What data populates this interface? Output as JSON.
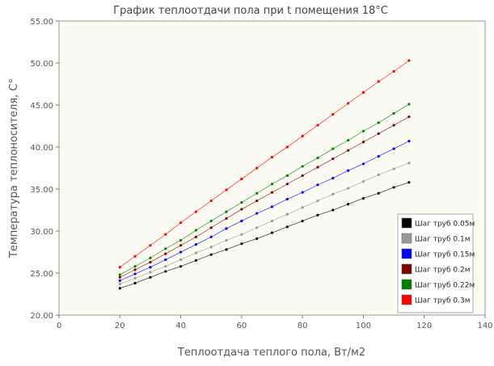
{
  "chart_data": {
    "type": "line",
    "title": "График теплоотдачи пола при t помещения 18°C",
    "xlabel": "Теплоотдача теплого пола, Вт/м2",
    "ylabel": "Температура теплоносителя, С°",
    "xlim": [
      0,
      140
    ],
    "ylim": [
      20,
      55
    ],
    "xticks": [
      "0",
      "20",
      "40",
      "60",
      "80",
      "100",
      "120",
      "140"
    ],
    "yticks": [
      "20.00",
      "25.00",
      "30.00",
      "35.00",
      "40.00",
      "45.00",
      "50.00",
      "55.00"
    ],
    "grid": false,
    "legend_position": "bottom-right",
    "plot_background": "#fcfbf3",
    "series": [
      {
        "name": "Шаг труб 0.05м",
        "color": "#000000",
        "x": [
          20,
          25,
          30,
          35,
          40,
          45,
          50,
          55,
          60,
          65,
          70,
          75,
          80,
          85,
          90,
          95,
          100,
          105,
          110,
          115
        ],
        "values": [
          23.2,
          23.8,
          24.5,
          25.2,
          25.8,
          26.5,
          27.2,
          27.8,
          28.5,
          29.1,
          29.8,
          30.5,
          31.2,
          31.9,
          32.5,
          33.2,
          33.9,
          34.5,
          35.2,
          35.8
        ]
      },
      {
        "name": "Шаг труб 0.1м",
        "color": "#999999",
        "x": [
          20,
          25,
          30,
          35,
          40,
          45,
          50,
          55,
          60,
          65,
          70,
          75,
          80,
          85,
          90,
          95,
          100,
          105,
          110,
          115
        ],
        "values": [
          23.7,
          24.4,
          25.1,
          25.8,
          26.6,
          27.4,
          28.1,
          28.9,
          29.6,
          30.4,
          31.2,
          32.0,
          32.8,
          33.6,
          34.4,
          35.1,
          35.9,
          36.7,
          37.4,
          38.1
        ]
      },
      {
        "name": "Шаг труб 0.15м",
        "color": "#0000ff",
        "x": [
          20,
          25,
          30,
          35,
          40,
          45,
          50,
          55,
          60,
          65,
          70,
          75,
          80,
          85,
          90,
          95,
          100,
          105,
          110,
          115
        ],
        "values": [
          24.1,
          24.9,
          25.7,
          26.6,
          27.5,
          28.4,
          29.3,
          30.3,
          31.2,
          32.1,
          32.9,
          33.8,
          34.6,
          35.5,
          36.3,
          37.2,
          38.0,
          38.9,
          39.8,
          40.7
        ]
      },
      {
        "name": "Шаг труб 0.2м",
        "color": "#800000",
        "x": [
          20,
          25,
          30,
          35,
          40,
          45,
          50,
          55,
          60,
          65,
          70,
          75,
          80,
          85,
          90,
          95,
          100,
          105,
          110,
          115
        ],
        "values": [
          24.5,
          25.4,
          26.3,
          27.3,
          28.3,
          29.3,
          30.4,
          31.5,
          32.6,
          33.6,
          34.6,
          35.6,
          36.6,
          37.6,
          38.6,
          39.6,
          40.6,
          41.6,
          42.6,
          43.6
        ]
      },
      {
        "name": "Шаг труб 0.22м",
        "color": "#008000",
        "x": [
          20,
          25,
          30,
          35,
          40,
          45,
          50,
          55,
          60,
          65,
          70,
          75,
          80,
          85,
          90,
          95,
          100,
          105,
          110,
          115
        ],
        "values": [
          24.8,
          25.8,
          26.8,
          27.9,
          28.9,
          30.1,
          31.2,
          32.3,
          33.4,
          34.5,
          35.6,
          36.6,
          37.7,
          38.7,
          39.8,
          40.8,
          41.9,
          42.9,
          44.0,
          45.1
        ]
      },
      {
        "name": "Шаг труб 0.3м",
        "color": "#ff0000",
        "x": [
          20,
          25,
          30,
          35,
          40,
          45,
          50,
          55,
          60,
          65,
          70,
          75,
          80,
          85,
          90,
          95,
          100,
          105,
          110,
          115
        ],
        "values": [
          25.7,
          27.0,
          28.3,
          29.6,
          31.0,
          32.3,
          33.6,
          34.9,
          36.2,
          37.5,
          38.8,
          40.0,
          41.3,
          42.6,
          43.9,
          45.2,
          46.5,
          47.8,
          49.0,
          50.3
        ]
      }
    ]
  }
}
